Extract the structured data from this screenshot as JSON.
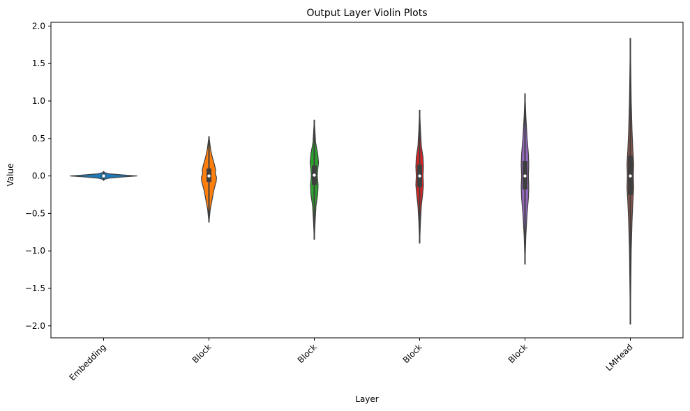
{
  "chart_data": {
    "type": "violin",
    "title": "Output Layer Violin Plots",
    "xlabel": "Layer",
    "ylabel": "Value",
    "ylim": [
      -2.16,
      2.05
    ],
    "yticks": [
      2.0,
      1.5,
      1.0,
      0.5,
      0.0,
      -0.5,
      -1.0,
      -1.5,
      -2.0
    ],
    "ytick_labels": [
      "2.0",
      "1.5",
      "1.0",
      "0.5",
      "0.0",
      "−0.5",
      "−1.0",
      "−1.5",
      "−2.0"
    ],
    "categories": [
      "Embedding",
      "Block",
      "Block",
      "Block",
      "Block",
      "LMHead"
    ],
    "grid": false,
    "legend": "none",
    "series": [
      {
        "color": "#1f77b4",
        "min": -0.06,
        "max": 0.06,
        "q1": -0.01,
        "median": 0.0,
        "q3": 0.01,
        "density": [
          [
            -0.06,
            0.0
          ],
          [
            -0.045,
            0.02
          ],
          [
            -0.03,
            0.12
          ],
          [
            -0.015,
            0.42
          ],
          [
            0.0,
            0.8
          ],
          [
            0.015,
            0.42
          ],
          [
            0.03,
            0.12
          ],
          [
            0.045,
            0.02
          ],
          [
            0.06,
            0.0
          ]
        ]
      },
      {
        "color": "#ff7f0e",
        "min": -0.62,
        "max": 0.53,
        "q1": -0.08,
        "median": 0.0,
        "q3": 0.1,
        "density": [
          [
            -0.62,
            0.0
          ],
          [
            -0.45,
            0.03
          ],
          [
            -0.3,
            0.08
          ],
          [
            -0.18,
            0.12
          ],
          [
            -0.08,
            0.17
          ],
          [
            -0.02,
            0.18
          ],
          [
            0.0,
            0.17
          ],
          [
            0.03,
            0.15
          ],
          [
            0.08,
            0.16
          ],
          [
            0.15,
            0.13
          ],
          [
            0.25,
            0.08
          ],
          [
            0.35,
            0.04
          ],
          [
            0.53,
            0.0
          ]
        ]
      },
      {
        "color": "#2ca02c",
        "min": -0.85,
        "max": 0.75,
        "q1": -0.12,
        "median": 0.01,
        "q3": 0.14,
        "density": [
          [
            -0.85,
            0.0
          ],
          [
            -0.6,
            0.02
          ],
          [
            -0.4,
            0.04
          ],
          [
            -0.25,
            0.08
          ],
          [
            -0.12,
            0.09
          ],
          [
            0.0,
            0.07
          ],
          [
            0.08,
            0.08
          ],
          [
            0.18,
            0.1
          ],
          [
            0.3,
            0.08
          ],
          [
            0.45,
            0.03
          ],
          [
            0.75,
            0.0
          ]
        ]
      },
      {
        "color": "#d62728",
        "min": -0.9,
        "max": 0.88,
        "q1": -0.15,
        "median": 0.0,
        "q3": 0.15,
        "density": [
          [
            -0.9,
            0.0
          ],
          [
            -0.6,
            0.02
          ],
          [
            -0.4,
            0.04
          ],
          [
            -0.25,
            0.07
          ],
          [
            -0.12,
            0.09
          ],
          [
            0.0,
            0.08
          ],
          [
            0.12,
            0.09
          ],
          [
            0.25,
            0.08
          ],
          [
            0.4,
            0.04
          ],
          [
            0.6,
            0.02
          ],
          [
            0.88,
            0.0
          ]
        ]
      },
      {
        "color": "#9467bd",
        "min": -1.18,
        "max": 1.1,
        "q1": -0.18,
        "median": 0.0,
        "q3": 0.2,
        "density": [
          [
            -1.18,
            0.0
          ],
          [
            -0.8,
            0.02
          ],
          [
            -0.5,
            0.05
          ],
          [
            -0.3,
            0.08
          ],
          [
            -0.15,
            0.09
          ],
          [
            0.0,
            0.08
          ],
          [
            0.15,
            0.09
          ],
          [
            0.3,
            0.08
          ],
          [
            0.5,
            0.05
          ],
          [
            0.8,
            0.02
          ],
          [
            1.1,
            0.0
          ]
        ]
      },
      {
        "color": "#8c564b",
        "min": -1.98,
        "max": 1.84,
        "q1": -0.25,
        "median": 0.0,
        "q3": 0.27,
        "density": [
          [
            -1.98,
            0.0
          ],
          [
            -1.0,
            0.02
          ],
          [
            -0.6,
            0.04
          ],
          [
            -0.35,
            0.06
          ],
          [
            -0.15,
            0.08
          ],
          [
            0.0,
            0.07
          ],
          [
            0.15,
            0.08
          ],
          [
            0.35,
            0.06
          ],
          [
            0.6,
            0.04
          ],
          [
            1.0,
            0.02
          ],
          [
            1.84,
            0.0
          ]
        ]
      }
    ]
  }
}
